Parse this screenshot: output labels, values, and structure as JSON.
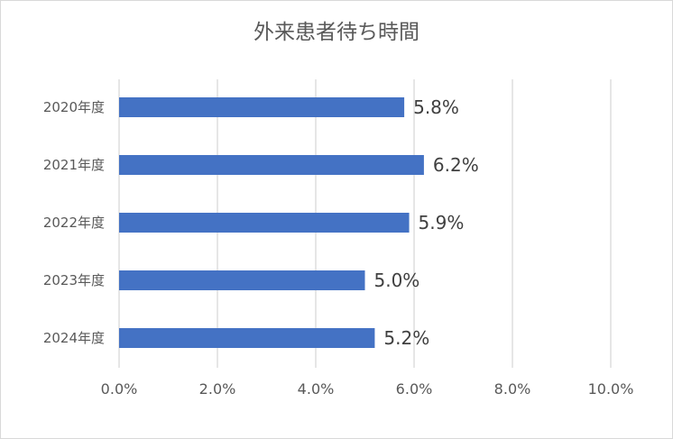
{
  "chart_data": {
    "type": "bar",
    "orientation": "horizontal",
    "title": "外来患者待ち時間",
    "categories": [
      "2020年度",
      "2021年度",
      "2022年度",
      "2023年度",
      "2024年度"
    ],
    "values": [
      5.8,
      6.2,
      5.9,
      5.0,
      5.2
    ],
    "data_labels": [
      "5.8%",
      "6.2%",
      "5.9%",
      "5.0%",
      "5.2%"
    ],
    "xlim": [
      0,
      10
    ],
    "x_ticks": [
      0,
      2,
      4,
      6,
      8,
      10
    ],
    "x_tick_labels": [
      "0.0%",
      "2.0%",
      "4.0%",
      "6.0%",
      "8.0%",
      "10.0%"
    ],
    "grid": "vertical",
    "legend": "none",
    "bar_color": "#4472c4",
    "grid_color": "#d9d9d9"
  }
}
